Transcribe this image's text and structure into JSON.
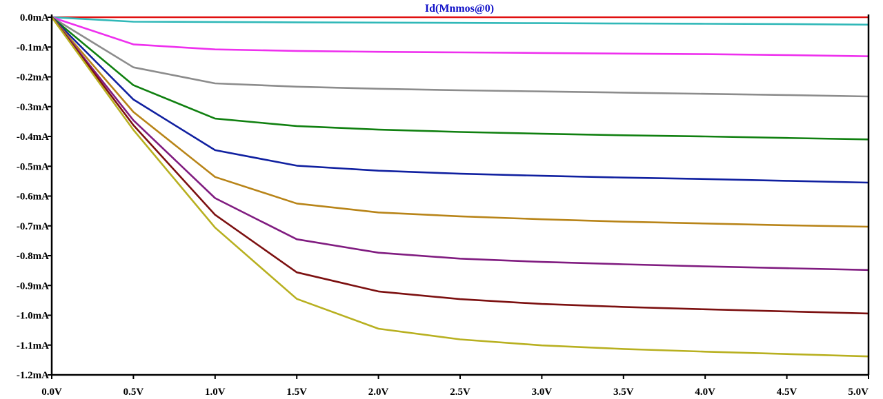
{
  "chart_data": {
    "type": "line",
    "title": "Id(Mnmos@0)",
    "title_color": "#1010c8",
    "xlabel": "",
    "ylabel": "",
    "xlim": [
      0,
      5
    ],
    "ylim": [
      -1.2,
      0.0
    ],
    "grid": false,
    "legend": "none",
    "x_ticks": [
      {
        "value": 0.0,
        "label": "0.0V"
      },
      {
        "value": 0.5,
        "label": "0.5V"
      },
      {
        "value": 1.0,
        "label": "1.0V"
      },
      {
        "value": 1.5,
        "label": "1.5V"
      },
      {
        "value": 2.0,
        "label": "2.0V"
      },
      {
        "value": 2.5,
        "label": "2.5V"
      },
      {
        "value": 3.0,
        "label": "3.0V"
      },
      {
        "value": 3.5,
        "label": "3.5V"
      },
      {
        "value": 4.0,
        "label": "4.0V"
      },
      {
        "value": 4.5,
        "label": "4.5V"
      },
      {
        "value": 5.0,
        "label": "5.0V"
      }
    ],
    "y_ticks": [
      {
        "value": 0.0,
        "label": "0.0mA"
      },
      {
        "value": -0.1,
        "label": "-0.1mA"
      },
      {
        "value": -0.2,
        "label": "-0.2mA"
      },
      {
        "value": -0.3,
        "label": "-0.3mA"
      },
      {
        "value": -0.4,
        "label": "-0.4mA"
      },
      {
        "value": -0.5,
        "label": "-0.5mA"
      },
      {
        "value": -0.6,
        "label": "-0.6mA"
      },
      {
        "value": -0.7,
        "label": "-0.7mA"
      },
      {
        "value": -0.8,
        "label": "-0.8mA"
      },
      {
        "value": -0.9,
        "label": "-0.9mA"
      },
      {
        "value": -1.0,
        "label": "-1.0mA"
      },
      {
        "value": -1.1,
        "label": "-1.1mA"
      },
      {
        "value": -1.2,
        "label": "-1.2mA"
      }
    ],
    "x": [
      0,
      0.5,
      1.0,
      1.5,
      2.0,
      2.5,
      3.0,
      3.5,
      4.0,
      4.5,
      5.0
    ],
    "series": [
      {
        "color": "#e01010",
        "values": [
          0,
          0,
          0,
          0,
          0,
          0,
          0,
          0,
          0,
          0,
          0
        ]
      },
      {
        "color": "#30b8b8",
        "values": [
          0,
          -0.015,
          -0.016,
          -0.017,
          -0.018,
          -0.019,
          -0.02,
          -0.021,
          -0.022,
          -0.023,
          -0.025
        ]
      },
      {
        "color": "#ee30ee",
        "values": [
          0,
          -0.091,
          -0.108,
          -0.113,
          -0.116,
          -0.118,
          -0.12,
          -0.122,
          -0.124,
          -0.127,
          -0.131
        ]
      },
      {
        "color": "#8c8c8c",
        "values": [
          0,
          -0.168,
          -0.222,
          -0.233,
          -0.24,
          -0.245,
          -0.249,
          -0.253,
          -0.257,
          -0.261,
          -0.266
        ]
      },
      {
        "color": "#108010",
        "values": [
          0,
          -0.228,
          -0.34,
          -0.365,
          -0.377,
          -0.385,
          -0.391,
          -0.396,
          -0.4,
          -0.405,
          -0.41
        ]
      },
      {
        "color": "#1020a0",
        "values": [
          0,
          -0.276,
          -0.446,
          -0.498,
          -0.515,
          -0.525,
          -0.532,
          -0.538,
          -0.543,
          -0.549,
          -0.555
        ]
      },
      {
        "color": "#b88418",
        "values": [
          0,
          -0.318,
          -0.536,
          -0.625,
          -0.655,
          -0.668,
          -0.678,
          -0.686,
          -0.692,
          -0.698,
          -0.703
        ]
      },
      {
        "color": "#801c80",
        "values": [
          0,
          -0.346,
          -0.607,
          -0.745,
          -0.79,
          -0.81,
          -0.821,
          -0.829,
          -0.836,
          -0.842,
          -0.848
        ]
      },
      {
        "color": "#7c1010",
        "values": [
          0,
          -0.362,
          -0.663,
          -0.856,
          -0.92,
          -0.946,
          -0.962,
          -0.972,
          -0.98,
          -0.987,
          -0.994
        ]
      },
      {
        "color": "#b8b020",
        "values": [
          0,
          -0.378,
          -0.706,
          -0.945,
          -1.045,
          -1.081,
          -1.101,
          -1.113,
          -1.122,
          -1.13,
          -1.138
        ]
      }
    ]
  }
}
